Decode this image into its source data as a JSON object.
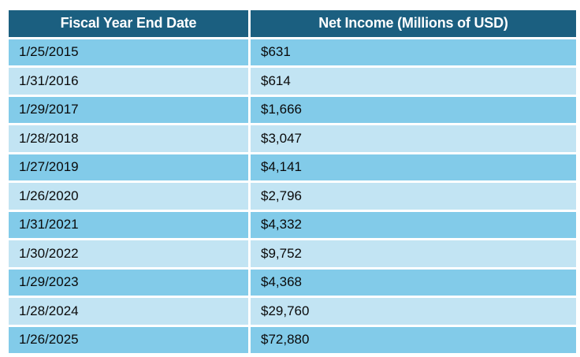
{
  "table": {
    "headers": [
      "Fiscal Year End Date",
      "Net Income (Millions of USD)"
    ],
    "rows": [
      {
        "date": "1/25/2015",
        "value": "$631"
      },
      {
        "date": "1/31/2016",
        "value": "$614"
      },
      {
        "date": "1/29/2017",
        "value": "$1,666"
      },
      {
        "date": "1/28/2018",
        "value": "$3,047"
      },
      {
        "date": "1/27/2019",
        "value": "$4,141"
      },
      {
        "date": "1/26/2020",
        "value": "$2,796"
      },
      {
        "date": "1/31/2021",
        "value": "$4,332"
      },
      {
        "date": "1/30/2022",
        "value": "$9,752"
      },
      {
        "date": "1/29/2023",
        "value": "$4,368"
      },
      {
        "date": "1/28/2024",
        "value": "$29,760"
      },
      {
        "date": "1/26/2025",
        "value": "$72,880"
      }
    ]
  },
  "colors": {
    "header_bg": "#1b5f80",
    "header_text": "#ffffff",
    "row_odd_bg": "#82cbe9",
    "row_even_bg": "#c2e4f3",
    "body_text": "#0a0a0a",
    "divider": "#ffffff"
  },
  "chart_data": {
    "type": "table",
    "title": "",
    "columns": [
      "Fiscal Year End Date",
      "Net Income (Millions of USD)"
    ],
    "categories": [
      "1/25/2015",
      "1/31/2016",
      "1/29/2017",
      "1/28/2018",
      "1/27/2019",
      "1/26/2020",
      "1/31/2021",
      "1/30/2022",
      "1/29/2023",
      "1/28/2024",
      "1/26/2025"
    ],
    "values": [
      631,
      614,
      1666,
      3047,
      4141,
      2796,
      4332,
      9752,
      4368,
      29760,
      72880
    ],
    "value_format": "USD millions"
  }
}
